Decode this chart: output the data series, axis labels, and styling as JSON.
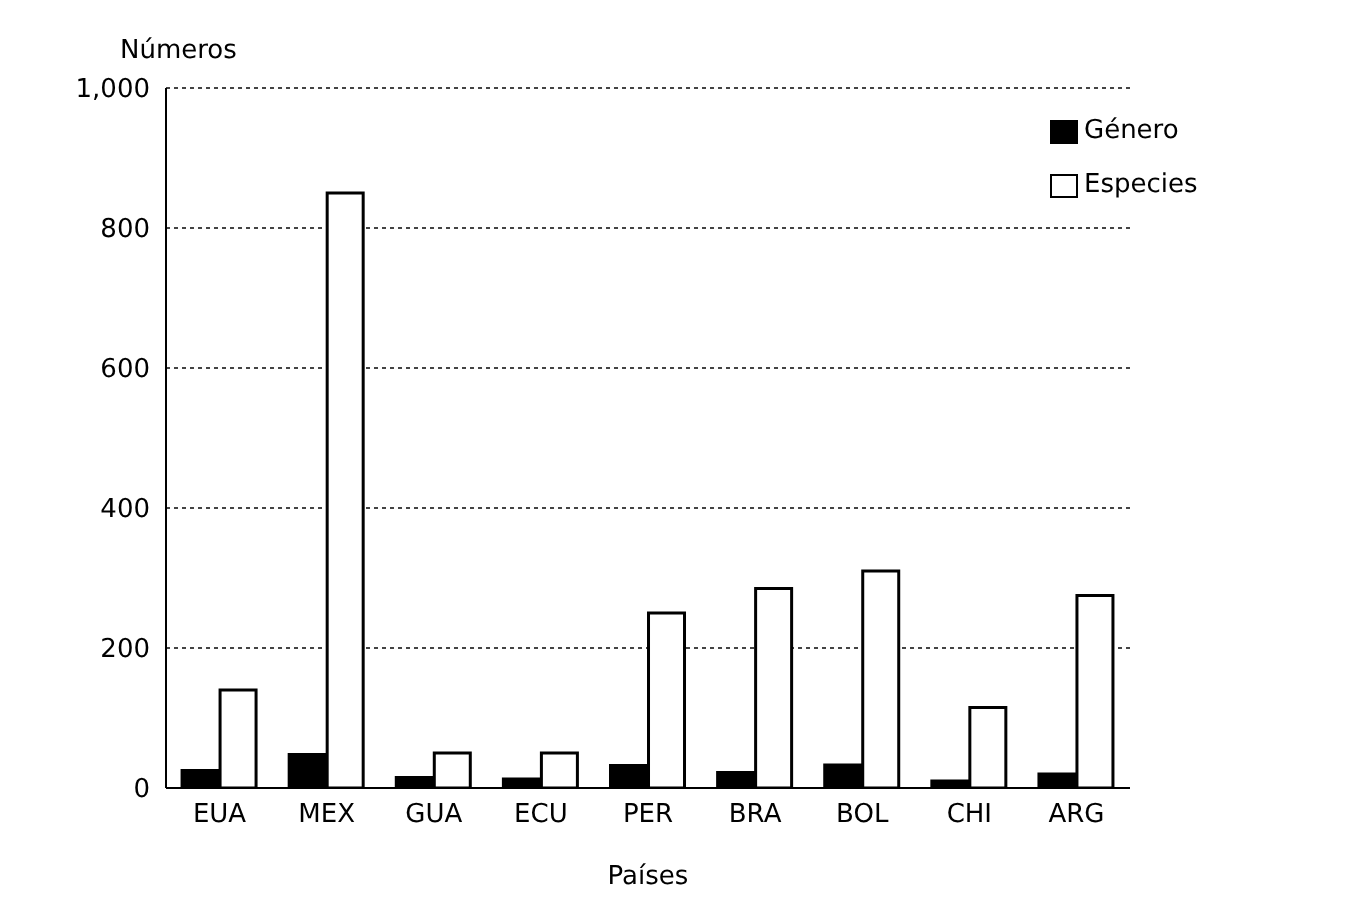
{
  "chart_data": {
    "type": "bar",
    "xlabel": "Países",
    "ylabel": "Números",
    "categories": [
      "EUA",
      "MEX",
      "GUA",
      "ECU",
      "PER",
      "BRA",
      "BOL",
      "CHI",
      "ARG"
    ],
    "series": [
      {
        "name": "Género",
        "color": "#000000",
        "values": [
          25,
          48,
          15,
          13,
          32,
          22,
          33,
          10,
          20
        ]
      },
      {
        "name": "Especies",
        "color": "#ffffff",
        "values": [
          140,
          850,
          50,
          50,
          250,
          285,
          310,
          115,
          275
        ]
      }
    ],
    "ylim": [
      0,
      1000
    ],
    "yticks": [
      0,
      200,
      400,
      600,
      800,
      {
        "value": 1000,
        "label": "1,000"
      }
    ],
    "grid": "y",
    "legend": "top right"
  }
}
